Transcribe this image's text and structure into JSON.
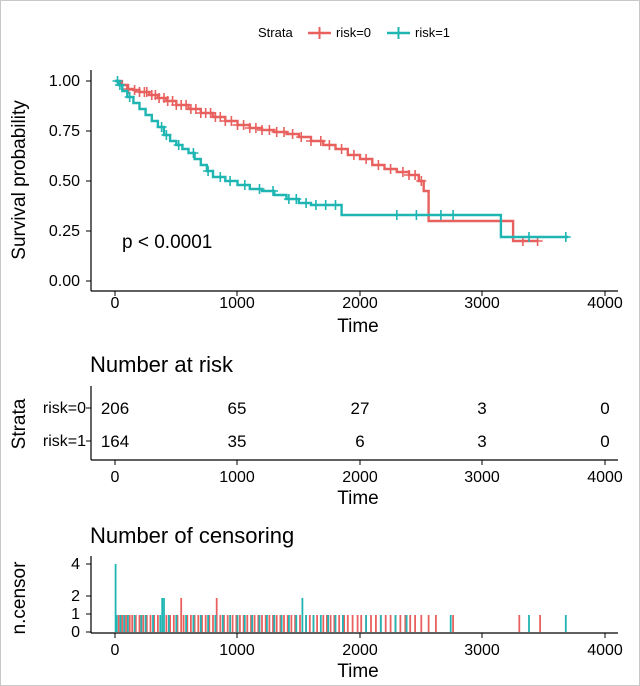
{
  "colors": {
    "risk0": "#E8615F",
    "risk1": "#1FB5B3",
    "axis": "#000000"
  },
  "legend": {
    "title": "Strata",
    "entries": [
      "risk=0",
      "risk=1"
    ]
  },
  "survival": {
    "ylabel": "Survival probability",
    "xlabel": "Time",
    "pvalue_text": "p < 0.0001",
    "y_ticks": [
      "0.00",
      "0.25",
      "0.50",
      "0.75",
      "1.00"
    ],
    "x_ticks": [
      "0",
      "1000",
      "2000",
      "3000",
      "4000"
    ]
  },
  "risk_table": {
    "title": "Number at risk",
    "ylabel": "Strata",
    "xlabel": "Time",
    "row_labels": [
      "risk=0",
      "risk=1"
    ],
    "rows": [
      [
        "206",
        "65",
        "27",
        "3",
        "0"
      ],
      [
        "164",
        "35",
        "6",
        "3",
        "0"
      ]
    ],
    "x_ticks": [
      "0",
      "1000",
      "2000",
      "3000",
      "4000"
    ]
  },
  "censor": {
    "title": "Number of censoring",
    "ylabel": "n.censor",
    "xlabel": "Time",
    "y_ticks": [
      "0",
      "1",
      "2",
      "4"
    ],
    "x_ticks": [
      "0",
      "1000",
      "2000",
      "3000",
      "4000"
    ]
  },
  "chart_data": [
    {
      "type": "line",
      "title": "",
      "xlabel": "Time",
      "ylabel": "Survival probability",
      "xlim": [
        -150,
        4150
      ],
      "ylim": [
        0,
        1
      ],
      "annotation": "p < 0.0001",
      "series": [
        {
          "name": "risk=0",
          "x": [
            0,
            50,
            100,
            150,
            200,
            280,
            350,
            420,
            500,
            600,
            700,
            800,
            900,
            1000,
            1100,
            1200,
            1300,
            1400,
            1500,
            1600,
            1700,
            1800,
            1900,
            2000,
            2100,
            2200,
            2300,
            2400,
            2480,
            2520,
            2560,
            3250,
            3450
          ],
          "y": [
            1.0,
            0.98,
            0.96,
            0.955,
            0.945,
            0.93,
            0.915,
            0.9,
            0.88,
            0.86,
            0.84,
            0.82,
            0.8,
            0.78,
            0.765,
            0.755,
            0.745,
            0.735,
            0.72,
            0.7,
            0.68,
            0.66,
            0.63,
            0.61,
            0.58,
            0.56,
            0.545,
            0.53,
            0.5,
            0.45,
            0.3,
            0.2,
            0.2
          ],
          "censor_times": [
            60,
            110,
            160,
            200,
            240,
            260,
            300,
            330,
            360,
            400,
            430,
            470,
            500,
            540,
            580,
            620,
            660,
            700,
            740,
            780,
            820,
            860,
            900,
            950,
            1000,
            1050,
            1100,
            1150,
            1200,
            1260,
            1320,
            1380,
            1450,
            1520,
            1600,
            1680,
            1750,
            1850,
            1950,
            2050,
            2150,
            2250,
            2350,
            2400,
            2450,
            2500,
            3330,
            3450
          ]
        },
        {
          "name": "risk=1",
          "x": [
            0,
            30,
            60,
            100,
            150,
            200,
            250,
            300,
            350,
            400,
            450,
            500,
            550,
            600,
            650,
            700,
            750,
            800,
            900,
            1000,
            1100,
            1200,
            1300,
            1400,
            1500,
            1600,
            1850,
            3150,
            3700
          ],
          "y": [
            1.0,
            0.98,
            0.95,
            0.92,
            0.89,
            0.86,
            0.83,
            0.8,
            0.77,
            0.73,
            0.7,
            0.68,
            0.66,
            0.64,
            0.61,
            0.58,
            0.55,
            0.52,
            0.5,
            0.48,
            0.46,
            0.45,
            0.43,
            0.41,
            0.39,
            0.38,
            0.33,
            0.22,
            0.22
          ],
          "censor_times": [
            20,
            40,
            120,
            380,
            420,
            520,
            640,
            760,
            860,
            940,
            1060,
            1180,
            1290,
            1420,
            1480,
            1560,
            1640,
            1720,
            1800,
            2300,
            2460,
            2660,
            2760,
            3380,
            3680
          ]
        }
      ]
    },
    {
      "type": "table",
      "title": "Number at risk",
      "xlabel": "Time",
      "ylabel": "Strata",
      "x": [
        0,
        1000,
        2000,
        3000,
        4000
      ],
      "series": [
        {
          "name": "risk=0",
          "values": [
            206,
            65,
            27,
            3,
            0
          ]
        },
        {
          "name": "risk=1",
          "values": [
            164,
            35,
            6,
            3,
            0
          ]
        }
      ]
    },
    {
      "type": "bar",
      "title": "Number of censoring",
      "xlabel": "Time",
      "ylabel": "n.censor",
      "xlim": [
        -150,
        4150
      ],
      "ylim": [
        0,
        4
      ],
      "series": [
        {
          "name": "risk=0",
          "x": [
            30,
            60,
            90,
            120,
            140,
            170,
            200,
            230,
            260,
            290,
            320,
            350,
            420,
            450,
            480,
            510,
            540,
            560,
            590,
            620,
            650,
            680,
            710,
            740,
            770,
            800,
            830,
            860,
            890,
            920,
            960,
            990,
            1020,
            1050,
            1080,
            1110,
            1140,
            1170,
            1200,
            1230,
            1260,
            1290,
            1320,
            1350,
            1380,
            1410,
            1440,
            1470,
            1510,
            1560,
            1590,
            1620,
            1650,
            1700,
            1730,
            1760,
            1790,
            1830,
            1870,
            1900,
            1940,
            1980,
            2010,
            2050,
            2090,
            2130,
            2170,
            2210,
            2250,
            2290,
            2330,
            2370,
            2410,
            2450,
            2500,
            2560,
            2620,
            2760,
            3300,
            3470
          ],
          "values": [
            1,
            1,
            1,
            1,
            1,
            1,
            1,
            1,
            1,
            1,
            1,
            1,
            1,
            1,
            1,
            1,
            2,
            1,
            1,
            1,
            1,
            1,
            1,
            1,
            1,
            1,
            2,
            1,
            1,
            1,
            1,
            1,
            1,
            1,
            1,
            1,
            1,
            1,
            1,
            1,
            1,
            1,
            1,
            1,
            1,
            1,
            1,
            1,
            1,
            1,
            1,
            1,
            1,
            1,
            1,
            1,
            1,
            1,
            1,
            1,
            1,
            1,
            1,
            1,
            1,
            1,
            1,
            1,
            1,
            1,
            1,
            1,
            1,
            1,
            1,
            1,
            1,
            1,
            1,
            1
          ]
        },
        {
          "name": "risk=1",
          "x": [
            5,
            15,
            45,
            75,
            105,
            160,
            215,
            250,
            310,
            370,
            385,
            400,
            440,
            500,
            580,
            640,
            700,
            760,
            820,
            880,
            940,
            1000,
            1060,
            1120,
            1180,
            1240,
            1300,
            1360,
            1420,
            1480,
            1530,
            1560,
            1620,
            1680,
            1740,
            1800,
            1860,
            2050,
            2170,
            2290,
            2380,
            2740,
            3380,
            3680
          ],
          "values": [
            4,
            1,
            1,
            1,
            1,
            1,
            1,
            1,
            1,
            1,
            2,
            2,
            1,
            1,
            1,
            1,
            1,
            1,
            1,
            1,
            1,
            1,
            1,
            1,
            1,
            1,
            1,
            1,
            1,
            1,
            2,
            1,
            1,
            1,
            1,
            1,
            1,
            1,
            1,
            1,
            1,
            1,
            1,
            1
          ]
        }
      ]
    }
  ]
}
